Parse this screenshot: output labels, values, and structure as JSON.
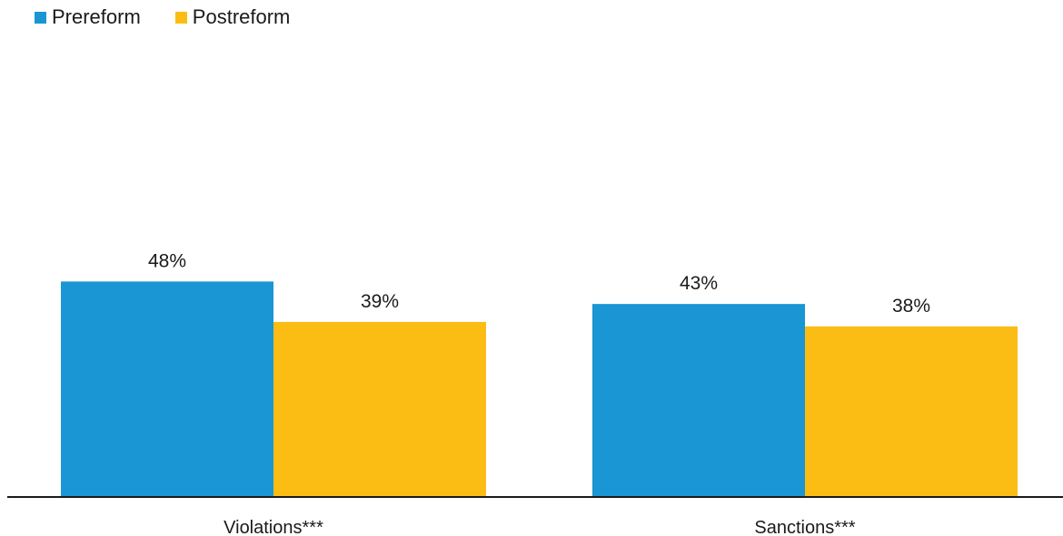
{
  "chart_data": {
    "type": "bar",
    "categories": [
      "Violations***",
      "Sanctions***"
    ],
    "series": [
      {
        "name": "Prereform",
        "color": "#1996d3",
        "values": [
          48,
          43
        ],
        "labels": [
          "48%",
          "43%"
        ]
      },
      {
        "name": "Postreform",
        "color": "#fbbd14",
        "values": [
          39,
          38
        ],
        "labels": [
          "39%",
          "38%"
        ]
      }
    ],
    "value_unit": "%",
    "legend_position": "top-left",
    "grid": false,
    "title": "",
    "xlabel": "",
    "ylabel": ""
  }
}
